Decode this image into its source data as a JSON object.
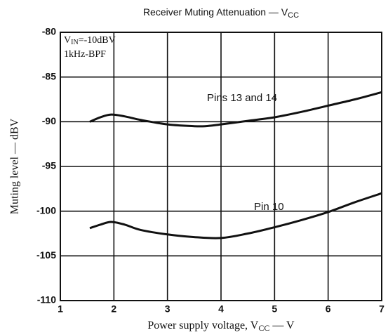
{
  "chart_data": {
    "type": "line",
    "title": "Receiver Muting Attenuation — V",
    "title_subscript": "CC",
    "x_label": "Power supply voltage, V",
    "x_label_subscript": "CC",
    "x_label_suffix": " — V",
    "y_label": "Muting level — dBV",
    "annotations": {
      "condition_v": "V",
      "condition_sub": "IN",
      "condition_rest": "=-10dBV",
      "filter": "1kHz-BPF"
    },
    "xlim": [
      1,
      7
    ],
    "xticks": [
      1,
      2,
      3,
      4,
      5,
      6,
      7
    ],
    "ylim": [
      -110,
      -80
    ],
    "yticks": [
      -110,
      -105,
      -100,
      -95,
      -90,
      -85,
      -80
    ],
    "grid": true,
    "series": [
      {
        "name": "Pins 13 and 14",
        "color": "#111111",
        "x": [
          1.55,
          1.75,
          1.95,
          2.2,
          2.5,
          3,
          3.5,
          3.7,
          4,
          4.5,
          5,
          5.5,
          6,
          6.5,
          7
        ],
        "values": [
          -90,
          -89.5,
          -89.2,
          -89.4,
          -89.8,
          -90.3,
          -90.5,
          -90.5,
          -90.3,
          -89.9,
          -89.5,
          -88.9,
          -88.2,
          -87.5,
          -86.7
        ]
      },
      {
        "name": "Pin 10",
        "color": "#111111",
        "x": [
          1.55,
          1.75,
          1.95,
          2.2,
          2.5,
          3,
          3.5,
          4,
          4.5,
          5,
          5.5,
          6,
          6.5,
          7
        ],
        "values": [
          -101.9,
          -101.5,
          -101.2,
          -101.5,
          -102.1,
          -102.6,
          -102.9,
          -103,
          -102.5,
          -101.8,
          -101,
          -100.1,
          -99,
          -98
        ]
      }
    ]
  }
}
